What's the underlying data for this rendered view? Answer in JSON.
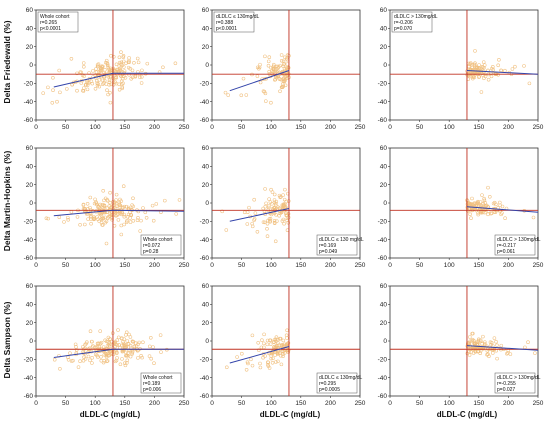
{
  "figure": {
    "row_labels": [
      "Delta Friedewald (%)",
      "Delta Martin-Hopkins (%)",
      "Delta Sampson (%)"
    ],
    "x_label": "dLDL-C (mg/dL)"
  },
  "chart_data": [
    {
      "type": "scatter",
      "row": 0,
      "col": 0,
      "xlim": [
        0,
        250
      ],
      "ylim": [
        -60,
        60
      ],
      "xticks": [
        "0",
        "50",
        "100",
        "150",
        "200",
        "250"
      ],
      "yticks": [
        "60",
        "40",
        "20",
        "0",
        "-20",
        "-40",
        "-60"
      ],
      "x_range": [
        10,
        250
      ],
      "ref_x": 130,
      "ref_y": -10,
      "fit_x": [
        30,
        130,
        250
      ],
      "fit_y": [
        -24,
        -9,
        -9
      ],
      "annotation": [
        "Whole cohort",
        "r=0.265",
        "p<0.0001"
      ],
      "annotation_loc": "top-left"
    },
    {
      "type": "scatter",
      "row": 0,
      "col": 1,
      "xlim": [
        0,
        250
      ],
      "ylim": [
        -60,
        60
      ],
      "xticks": [
        "0",
        "50",
        "100",
        "150",
        "200",
        "250"
      ],
      "yticks": [
        "60",
        "40",
        "20",
        "0",
        "-20",
        "-40",
        "-60"
      ],
      "x_range": [
        10,
        130
      ],
      "ref_x": 130,
      "ref_y": -10,
      "fit_x": [
        30,
        130
      ],
      "fit_y": [
        -28,
        -6
      ],
      "annotation": [
        "dLDLC ≤ 130mg/dL",
        "r=0.388",
        "p<0.0001"
      ],
      "annotation_loc": "top-left"
    },
    {
      "type": "scatter",
      "row": 0,
      "col": 2,
      "xlim": [
        0,
        250
      ],
      "ylim": [
        -60,
        60
      ],
      "xticks": [
        "0",
        "50",
        "100",
        "150",
        "200",
        "250"
      ],
      "yticks": [
        "60",
        "40",
        "20",
        "0",
        "-20",
        "-40",
        "-60"
      ],
      "x_range": [
        130,
        250
      ],
      "ref_x": 130,
      "ref_y": -10,
      "fit_x": [
        130,
        250
      ],
      "fit_y": [
        -6,
        -10
      ],
      "annotation": [
        "dLDLC > 130mg/dL",
        "r=-0.206",
        "p=0.070"
      ],
      "annotation_loc": "top-left"
    },
    {
      "type": "scatter",
      "row": 1,
      "col": 0,
      "xlim": [
        0,
        250
      ],
      "ylim": [
        -60,
        60
      ],
      "xticks": [
        "0",
        "50",
        "100",
        "150",
        "200",
        "250"
      ],
      "yticks": [
        "60",
        "40",
        "20",
        "0",
        "-20",
        "-40",
        "-60"
      ],
      "x_range": [
        10,
        250
      ],
      "ref_x": 130,
      "ref_y": -8,
      "fit_x": [
        30,
        130,
        250
      ],
      "fit_y": [
        -14,
        -8,
        -9
      ],
      "annotation": [
        "Whole cohort",
        "r=0.072",
        "p=0.28"
      ],
      "annotation_loc": "bottom-right"
    },
    {
      "type": "scatter",
      "row": 1,
      "col": 1,
      "xlim": [
        0,
        250
      ],
      "ylim": [
        -60,
        60
      ],
      "xticks": [
        "0",
        "50",
        "100",
        "150",
        "200",
        "250"
      ],
      "yticks": [
        "60",
        "40",
        "20",
        "0",
        "-20",
        "-40",
        "-60"
      ],
      "x_range": [
        10,
        130
      ],
      "ref_x": 130,
      "ref_y": -8,
      "fit_x": [
        30,
        130
      ],
      "fit_y": [
        -20,
        -6
      ],
      "annotation": [
        "dLDLC ≤ 130 mg/dL",
        "r=0.169",
        "p=0.049"
      ],
      "annotation_loc": "bottom-right"
    },
    {
      "type": "scatter",
      "row": 1,
      "col": 2,
      "xlim": [
        0,
        250
      ],
      "ylim": [
        -60,
        60
      ],
      "xticks": [
        "0",
        "50",
        "100",
        "150",
        "200",
        "250"
      ],
      "yticks": [
        "60",
        "40",
        "20",
        "0",
        "-20",
        "-40",
        "-60"
      ],
      "x_range": [
        130,
        250
      ],
      "ref_x": 130,
      "ref_y": -8,
      "fit_x": [
        130,
        250
      ],
      "fit_y": [
        -4,
        -10
      ],
      "annotation": [
        "dLDLC > 130mg/dL",
        "r=-0.217",
        "p=0.061"
      ],
      "annotation_loc": "bottom-right"
    },
    {
      "type": "scatter",
      "row": 2,
      "col": 0,
      "xlim": [
        0,
        250
      ],
      "ylim": [
        -60,
        60
      ],
      "xticks": [
        "0",
        "50",
        "100",
        "150",
        "200",
        "250"
      ],
      "yticks": [
        "60",
        "40",
        "20",
        "0",
        "-20",
        "-40",
        "-60"
      ],
      "x_range": [
        10,
        250
      ],
      "ref_x": 130,
      "ref_y": -9,
      "fit_x": [
        30,
        130,
        250
      ],
      "fit_y": [
        -18,
        -9,
        -9
      ],
      "annotation": [
        "Whole cohort",
        "r=0.189",
        "p=0.006"
      ],
      "annotation_loc": "bottom-right"
    },
    {
      "type": "scatter",
      "row": 2,
      "col": 1,
      "xlim": [
        0,
        250
      ],
      "ylim": [
        -60,
        60
      ],
      "xticks": [
        "0",
        "50",
        "100",
        "150",
        "200",
        "250"
      ],
      "yticks": [
        "60",
        "40",
        "20",
        "0",
        "-20",
        "-40",
        "-60"
      ],
      "x_range": [
        10,
        130
      ],
      "ref_x": 130,
      "ref_y": -9,
      "fit_x": [
        30,
        130
      ],
      "fit_y": [
        -24,
        -6
      ],
      "annotation": [
        "dLDLC ≤ 130mg/dL",
        "r=0.295",
        "p=0.0005"
      ],
      "annotation_loc": "bottom-right"
    },
    {
      "type": "scatter",
      "row": 2,
      "col": 2,
      "xlim": [
        0,
        250
      ],
      "ylim": [
        -60,
        60
      ],
      "xticks": [
        "0",
        "50",
        "100",
        "150",
        "200",
        "250"
      ],
      "yticks": [
        "60",
        "40",
        "20",
        "0",
        "-20",
        "-40",
        "-60"
      ],
      "x_range": [
        130,
        250
      ],
      "ref_x": 130,
      "ref_y": -9,
      "fit_x": [
        130,
        250
      ],
      "fit_y": [
        -5,
        -10
      ],
      "annotation": [
        "dLDLC > 130mg/dL",
        "r=-0.255",
        "p=0.027"
      ],
      "annotation_loc": "bottom-right"
    }
  ],
  "colors": {
    "points": "#f0c080",
    "fit_line": "#3344aa",
    "reference_line": "#c03020",
    "axis": "#333333"
  }
}
